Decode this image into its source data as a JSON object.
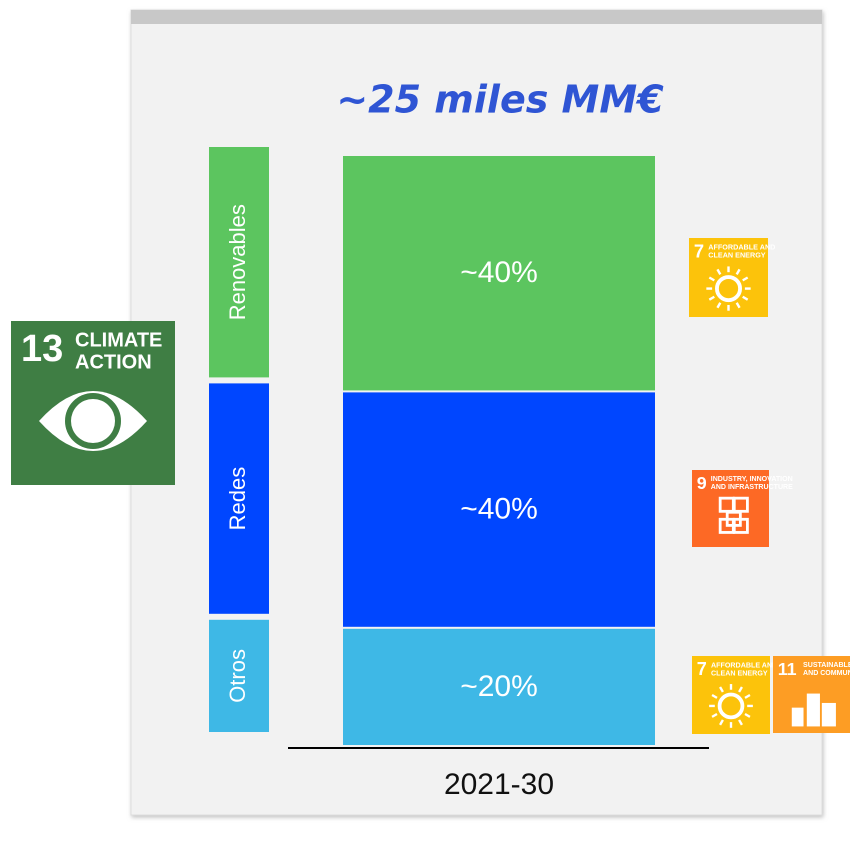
{
  "chart_data": {
    "type": "stacked_bar",
    "title": "~25 miles MM€",
    "categories": [
      "2021-30"
    ],
    "series": [
      {
        "name": "Renovables",
        "color": "#5cc55f",
        "values": [
          40
        ],
        "value_labels": [
          "~40%"
        ]
      },
      {
        "name": "Redes",
        "color": "#0046ff",
        "values": [
          40
        ],
        "value_labels": [
          "~40%"
        ]
      },
      {
        "name": "Otros",
        "color": "#3eb8e6",
        "values": [
          20
        ],
        "value_labels": [
          "~20%"
        ]
      }
    ],
    "sdg_icons": [
      {
        "number": "13",
        "label": [
          "CLIMATE",
          "ACTION"
        ],
        "color": "#3f7e44"
      },
      {
        "number": "7",
        "label": [
          "AFFORDABLE AND",
          "CLEAN ENERGY"
        ],
        "color": "#fcc30b"
      },
      {
        "number": "9",
        "label": [
          "INDUSTRY, INNOVATION",
          "AND INFRASTRUCTURE"
        ],
        "color": "#fd6925"
      },
      {
        "number": "7",
        "label": [
          "AFFORDABLE AND",
          "CLEAN ENERGY"
        ],
        "color": "#fcc30b"
      },
      {
        "number": "11",
        "label": [
          "SUSTAINABLE CITIES",
          "AND COMMUNITIES"
        ],
        "color": "#fd9d24"
      }
    ]
  }
}
